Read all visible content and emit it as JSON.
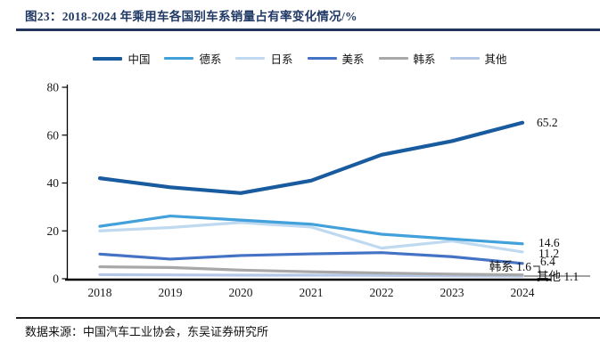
{
  "figure": {
    "title": "图23：2018-2024 年乘用车各国别车系销量占有率变化情况/%",
    "source": "数据来源：中国汽车工业协会，东吴证券研究所"
  },
  "colors": {
    "title_navy": "#1F3864",
    "china_line": "#185B9E",
    "german_line": "#42A0DA",
    "japanese_line": "#BFD9F0",
    "american_line": "#4472C4",
    "korean_line": "#A8A8A8",
    "other_line": "#B4C7E7",
    "axis": "#000000"
  },
  "chart_data": {
    "type": "line",
    "title": "2018-2024 年乘用车各国别车系销量占有率变化情况/%",
    "xlabel": "",
    "ylabel": "",
    "categories": [
      "2018",
      "2019",
      "2020",
      "2021",
      "2022",
      "2023",
      "2024"
    ],
    "ylim": [
      0,
      80
    ],
    "yticks": [
      0,
      20,
      40,
      60,
      80
    ],
    "grid": false,
    "legend_position": "top",
    "series": [
      {
        "name": "中国",
        "color": "#185B9E",
        "stroke_width": 4.2,
        "values": [
          42.0,
          38.2,
          35.8,
          41.0,
          51.8,
          57.5,
          65.2
        ],
        "end_label": "65.2"
      },
      {
        "name": "德系",
        "color": "#42A0DA",
        "stroke_width": 3.2,
        "values": [
          21.9,
          26.2,
          24.5,
          22.8,
          18.6,
          16.6,
          14.6
        ],
        "end_label": "14.6"
      },
      {
        "name": "日系",
        "color": "#BFD9F0",
        "stroke_width": 3.2,
        "values": [
          20.0,
          21.4,
          23.5,
          21.6,
          12.8,
          15.8,
          11.2
        ],
        "end_label": "11.2"
      },
      {
        "name": "美系",
        "color": "#4472C4",
        "stroke_width": 3.2,
        "values": [
          10.3,
          8.2,
          9.7,
          10.4,
          10.9,
          9.2,
          6.4
        ],
        "end_label": "6.4"
      },
      {
        "name": "韩系",
        "color": "#A8A8A8",
        "stroke_width": 3.2,
        "values": [
          5.0,
          4.7,
          3.6,
          2.9,
          2.4,
          1.9,
          1.6
        ],
        "end_label": "韩系 1.6"
      },
      {
        "name": "其他",
        "color": "#B4C7E7",
        "stroke_width": 3.2,
        "values": [
          1.7,
          1.6,
          1.5,
          1.5,
          1.4,
          1.2,
          1.1
        ],
        "end_label": "其他 1.1"
      }
    ]
  }
}
